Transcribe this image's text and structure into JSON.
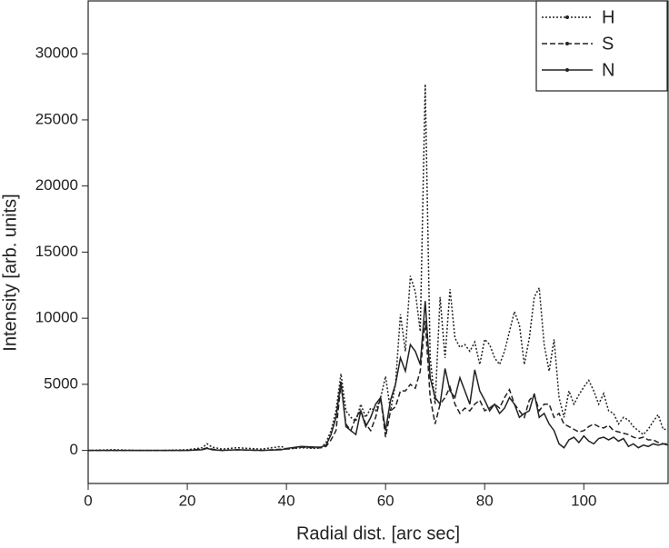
{
  "chart_data": {
    "type": "line",
    "xlabel": "Radial dist. [arc sec]",
    "ylabel": "Intensity [arb. units]",
    "x": [
      0,
      5,
      10,
      15,
      20,
      23,
      24,
      25,
      27,
      30,
      35,
      39,
      40,
      43,
      46,
      47,
      48,
      49,
      50,
      51,
      52,
      53,
      54,
      55,
      56,
      57,
      58,
      59,
      60,
      61,
      62,
      63,
      64,
      65,
      66,
      67,
      68,
      69,
      70,
      71,
      72,
      73,
      74,
      75,
      76,
      77,
      78,
      79,
      80,
      81,
      82,
      83,
      84,
      85,
      86,
      87,
      88,
      89,
      90,
      91,
      92,
      93,
      94,
      95,
      96,
      97,
      98,
      99,
      100,
      101,
      102,
      103,
      104,
      105,
      106,
      107,
      108,
      109,
      110,
      111,
      112,
      113,
      114,
      115,
      116,
      117
    ],
    "series": [
      {
        "name": "H",
        "color": "#222222",
        "linestyle": "dotted",
        "values": [
          0,
          50,
          0,
          0,
          50,
          200,
          500,
          250,
          100,
          200,
          100,
          300,
          100,
          200,
          150,
          200,
          600,
          1500,
          3000,
          5800,
          3000,
          2500,
          2200,
          3500,
          2500,
          3200,
          3000,
          4000,
          5600,
          3000,
          5000,
          10300,
          7500,
          13200,
          12000,
          9000,
          27700,
          7000,
          3500,
          11600,
          7000,
          12200,
          8500,
          7800,
          8000,
          7500,
          8200,
          6500,
          8400,
          8000,
          7000,
          6500,
          7500,
          9000,
          10500,
          9500,
          6500,
          8500,
          11600,
          12300,
          8000,
          6000,
          8400,
          4000,
          2500,
          4500,
          3500,
          4200,
          4800,
          5300,
          4500,
          3500,
          4300,
          3000,
          2800,
          2000,
          2500,
          2300,
          1800,
          1500,
          1200,
          1600,
          2200,
          2700,
          1600,
          1600
        ]
      },
      {
        "name": "S",
        "color": "#222222",
        "linestyle": "dashed",
        "values": [
          0,
          0,
          0,
          0,
          0,
          100,
          200,
          100,
          0,
          50,
          0,
          100,
          100,
          250,
          200,
          200,
          300,
          800,
          1500,
          5000,
          2000,
          1500,
          2500,
          3000,
          2000,
          1500,
          2500,
          4000,
          1000,
          3000,
          3300,
          4500,
          4500,
          5000,
          4700,
          6000,
          9800,
          4000,
          2000,
          3500,
          4000,
          4800,
          3500,
          2800,
          3200,
          3000,
          3500,
          3800,
          3000,
          3200,
          3500,
          3200,
          4000,
          4600,
          3500,
          3000,
          2500,
          3800,
          4200,
          3000,
          3500,
          3500,
          2500,
          2800,
          2000,
          1800,
          1600,
          1400,
          1500,
          1800,
          2000,
          1800,
          1700,
          1900,
          1500,
          1400,
          1300,
          1200,
          1000,
          900,
          1000,
          800,
          800,
          600,
          500,
          500
        ]
      },
      {
        "name": "N",
        "color": "#222222",
        "linestyle": "solid",
        "values": [
          0,
          0,
          0,
          0,
          0,
          50,
          150,
          50,
          0,
          50,
          0,
          50,
          150,
          300,
          250,
          250,
          400,
          1200,
          2500,
          5200,
          1800,
          1500,
          1200,
          3000,
          1800,
          2500,
          3500,
          4000,
          1500,
          3800,
          5000,
          7000,
          6000,
          8000,
          7500,
          6500,
          11300,
          5500,
          4000,
          3500,
          6200,
          4500,
          4000,
          5500,
          4500,
          3500,
          6100,
          4500,
          3800,
          3000,
          3500,
          2800,
          3200,
          4000,
          3500,
          2500,
          2800,
          3000,
          4300,
          2500,
          2800,
          2000,
          1500,
          500,
          200,
          800,
          1000,
          600,
          1100,
          700,
          500,
          900,
          1000,
          800,
          1000,
          700,
          900,
          300,
          500,
          200,
          400,
          300,
          500,
          400,
          500,
          400
        ]
      }
    ],
    "xlim": [
      0,
      117
    ],
    "xticks": [
      0,
      20,
      40,
      60,
      80,
      100
    ],
    "ylim": [
      -2500,
      34000
    ],
    "yticks": [
      0,
      5000,
      10000,
      15000,
      20000,
      25000,
      30000
    ],
    "grid": false,
    "legend": "upper right"
  }
}
